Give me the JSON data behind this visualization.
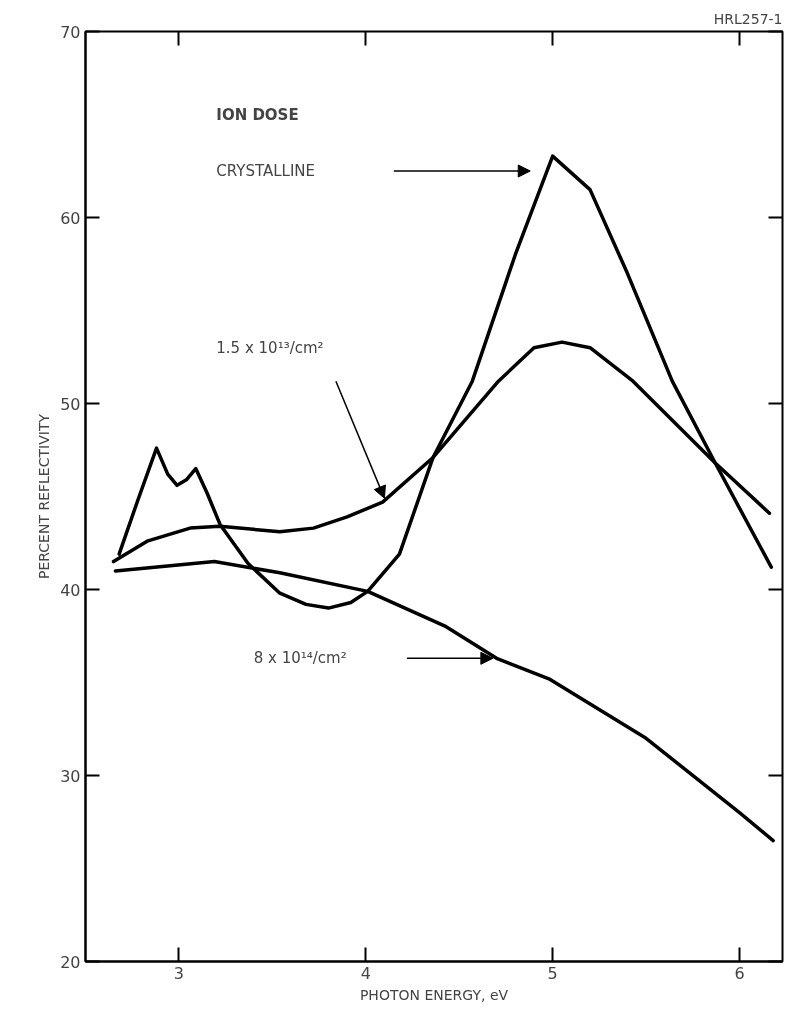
{
  "chart_data": {
    "type": "line",
    "xlabel": "PHOTON ENERGY, eV",
    "ylabel": "PERCENT REFLECTIVITY",
    "legend_title": "ION DOSE",
    "annotations": [
      "HRL257-1",
      "CRYSTALLINE",
      "1.5 x 10¹³/cm²",
      "8 x 10¹⁴/cm²"
    ],
    "xlim": [
      2.5,
      6.23
    ],
    "xticks": [
      3,
      4,
      5,
      6
    ],
    "ylim": [
      20,
      70
    ],
    "yticks": [
      20,
      30,
      40,
      50,
      60,
      70
    ],
    "grid": false,
    "marker": "none",
    "line_style": "solid",
    "series": [
      {
        "color": "#000000",
        "x": [
          2.68,
          2.78,
          2.88,
          2.94,
          2.99,
          3.04,
          3.09,
          3.15,
          3.22,
          3.37,
          3.54,
          3.68,
          3.8,
          3.92,
          4.01,
          4.18,
          4.36,
          4.57,
          4.8,
          5.0,
          5.2,
          5.4,
          5.64,
          5.87,
          6.17
        ],
        "values": [
          41.9,
          44.8,
          47.6,
          46.2,
          45.6,
          45.9,
          46.5,
          45.2,
          43.5,
          41.4,
          39.8,
          39.2,
          39.0,
          39.3,
          39.9,
          41.9,
          47.1,
          51.2,
          58.0,
          63.3,
          61.5,
          57.0,
          51.2,
          46.8,
          41.2
        ]
      },
      {
        "color": "#000000",
        "x": [
          2.65,
          2.83,
          3.06,
          3.22,
          3.54,
          3.72,
          3.9,
          4.09,
          4.36,
          4.71,
          4.9,
          5.05,
          5.2,
          5.43,
          5.87,
          6.16
        ],
        "values": [
          41.5,
          42.6,
          43.3,
          43.4,
          43.1,
          43.3,
          43.9,
          44.7,
          47.1,
          51.2,
          53.0,
          53.3,
          53.0,
          51.2,
          46.8,
          44.1
        ]
      },
      {
        "color": "#000000",
        "x": [
          2.66,
          3.19,
          3.54,
          4.01,
          4.43,
          4.7,
          4.98,
          5.5,
          6.0,
          6.18
        ],
        "values": [
          41.0,
          41.5,
          40.9,
          39.9,
          38.0,
          36.3,
          35.2,
          32.0,
          28.0,
          26.5
        ]
      }
    ]
  }
}
